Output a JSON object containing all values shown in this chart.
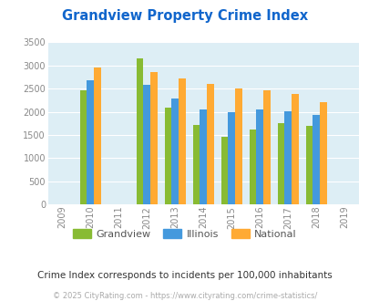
{
  "title": "Grandview Property Crime Index",
  "all_years": [
    2009,
    2010,
    2011,
    2012,
    2013,
    2014,
    2015,
    2016,
    2017,
    2018,
    2019
  ],
  "data_years": [
    2010,
    2012,
    2013,
    2014,
    2015,
    2016,
    2017,
    2018
  ],
  "grandview": [
    2470,
    3160,
    2080,
    1720,
    1460,
    1620,
    1750,
    1700
  ],
  "illinois": [
    2670,
    2590,
    2290,
    2060,
    1990,
    2050,
    2010,
    1940
  ],
  "national": [
    2950,
    2860,
    2720,
    2600,
    2500,
    2470,
    2380,
    2200
  ],
  "grandview_color": "#88bb33",
  "illinois_color": "#4499dd",
  "national_color": "#ffaa33",
  "bg_color": "#ddeef5",
  "title_color": "#1166cc",
  "subtitle": "Crime Index corresponds to incidents per 100,000 inhabitants",
  "footer": "© 2025 CityRating.com - https://www.cityrating.com/crime-statistics/",
  "ylim": [
    0,
    3500
  ],
  "yticks": [
    0,
    500,
    1000,
    1500,
    2000,
    2500,
    3000,
    3500
  ],
  "bar_width": 0.25
}
